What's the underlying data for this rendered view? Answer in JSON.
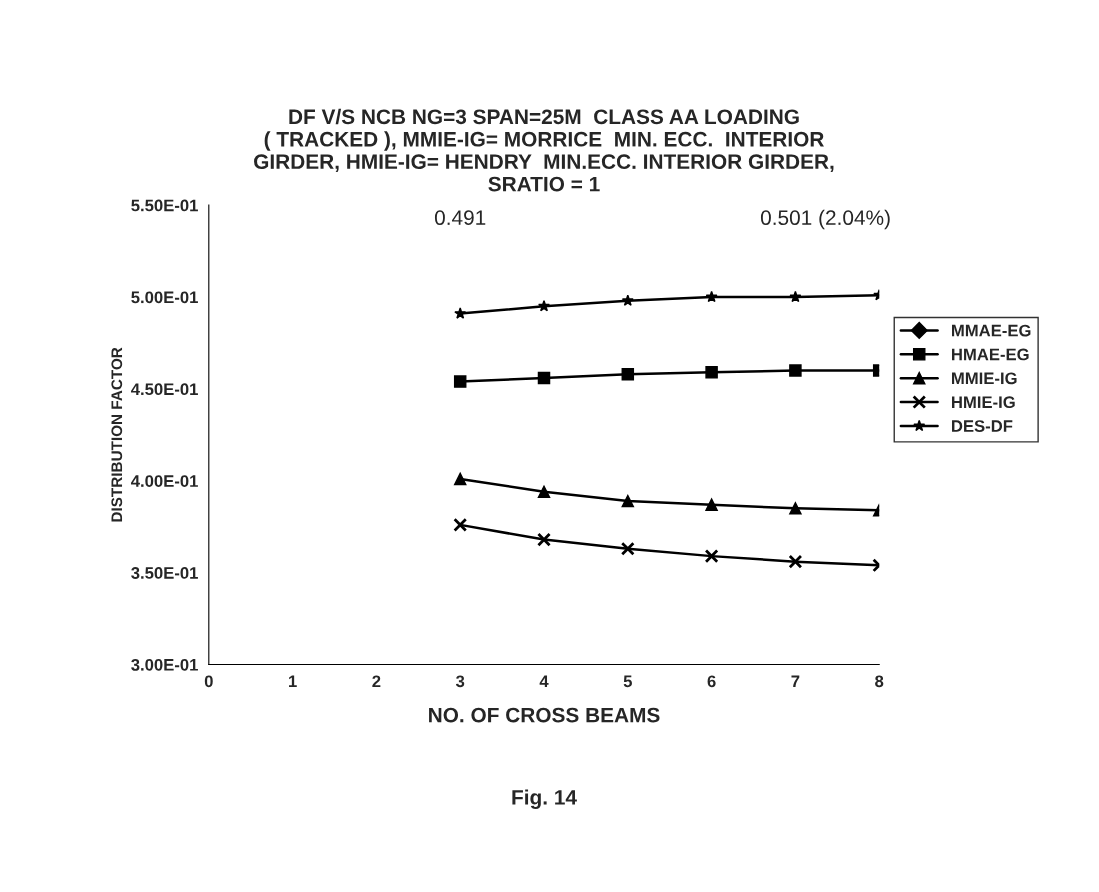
{
  "chart_data": {
    "type": "line",
    "title": "DF V/S NCB NG=3 SPAN=25M  CLASS AA LOADING\n( TRACKED ), MMIE-IG= MORRICE  MIN. ECC.  INTERIOR\nGIRDER, HMIE-IG= HENDRY  MIN.ECC. INTERIOR GIRDER,\nSRATIO = 1",
    "xlabel": "NO. OF CROSS BEAMS",
    "ylabel": "DISTRIBUTION FACTOR",
    "x": [
      3,
      4,
      5,
      6,
      7,
      8
    ],
    "series": [
      {
        "name": "MMAE-EG",
        "color": "#000000",
        "marker": "diamond",
        "values": [
          null,
          null,
          null,
          null,
          null,
          null
        ]
      },
      {
        "name": "HMAE-EG",
        "color": "#000000",
        "marker": "square",
        "values": [
          0.454,
          0.456,
          0.458,
          0.459,
          0.46,
          0.46
        ]
      },
      {
        "name": "MMIE-IG",
        "color": "#000000",
        "marker": "triangle",
        "values": [
          0.401,
          0.394,
          0.389,
          0.387,
          0.385,
          0.384
        ]
      },
      {
        "name": "HMIE-IG",
        "color": "#000000",
        "marker": "cross",
        "values": [
          0.376,
          0.368,
          0.363,
          0.359,
          0.356,
          0.354
        ]
      },
      {
        "name": "DES-DF",
        "color": "#000000",
        "marker": "star",
        "values": [
          0.491,
          0.495,
          0.498,
          0.5,
          0.5,
          0.501
        ]
      }
    ],
    "xlim": [
      0,
      8
    ],
    "xticks": [
      0,
      1,
      2,
      3,
      4,
      5,
      6,
      7,
      8
    ],
    "ylim": [
      0.3,
      0.55
    ],
    "yticks": [
      {
        "value": 0.3,
        "label": "3.00E-01"
      },
      {
        "value": 0.35,
        "label": "3.50E-01"
      },
      {
        "value": 0.4,
        "label": "4.00E-01"
      },
      {
        "value": 0.45,
        "label": "4.50E-01"
      },
      {
        "value": 0.5,
        "label": "5.00E-01"
      },
      {
        "value": 0.55,
        "label": "5.50E-01"
      }
    ],
    "annotations": [
      "0.491",
      "0.501 (2.04%)",
      "Fig. 14"
    ],
    "grid": false,
    "legend": "right",
    "line_style": "solid"
  }
}
